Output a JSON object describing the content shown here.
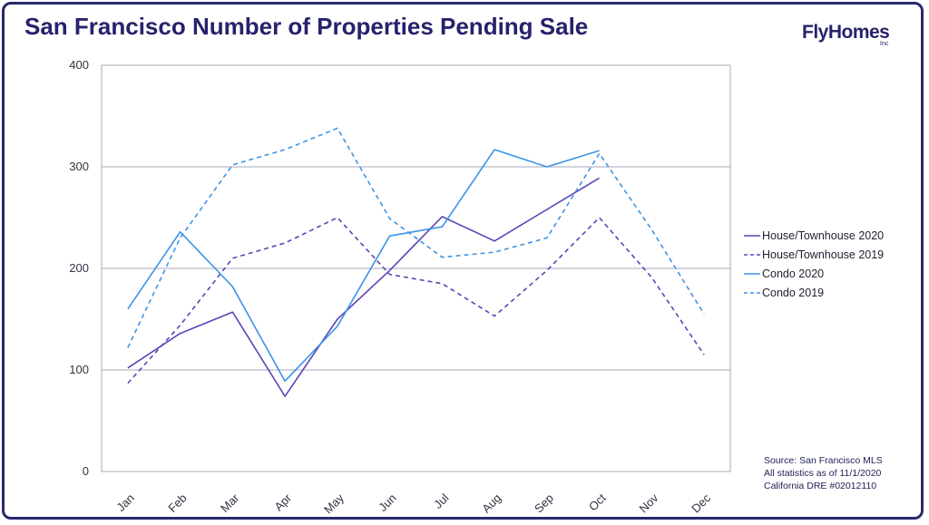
{
  "header": {
    "title": "San Francisco Number of Properties Pending Sale",
    "logo_text": "FlyHomes",
    "logo_subtext": "Inc"
  },
  "footer": {
    "source_lines": [
      "Source: San Francisco MLS",
      "All statistics as of 11/1/2020",
      "California DRE #02012110"
    ]
  },
  "colors": {
    "frame": "#2a2a6e",
    "title": "#26226b",
    "house": "#5b45b5",
    "condo": "#3c94e6",
    "grid": "#a9a9b8"
  },
  "chart_data": {
    "type": "line",
    "title": "San Francisco Number of Properties Pending Sale",
    "categories": [
      "Jan",
      "Feb",
      "Mar",
      "Apr",
      "May",
      "Jun",
      "Jul",
      "Aug",
      "Sep",
      "Oct",
      "Nov",
      "Dec"
    ],
    "ylim": [
      0,
      400
    ],
    "yticks": [
      "0",
      "100",
      "200",
      "300",
      "400"
    ],
    "grid": true,
    "legend_position": "right",
    "series": [
      {
        "name": "House/Townhouse 2020",
        "style": "solid",
        "color": "#5b45b5",
        "values": [
          102,
          136,
          157,
          74,
          150,
          198,
          251,
          227,
          258,
          289,
          null,
          null
        ]
      },
      {
        "name": "House/Townhouse 2019",
        "style": "dashed",
        "color": "#5b45b5",
        "values": [
          87,
          144,
          210,
          225,
          250,
          194,
          185,
          153,
          198,
          250,
          191,
          115
        ]
      },
      {
        "name": "Condo 2020",
        "style": "solid",
        "color": "#3c94e6",
        "values": [
          160,
          236,
          182,
          89,
          143,
          232,
          241,
          317,
          300,
          316,
          null,
          null
        ]
      },
      {
        "name": "Condo 2019",
        "style": "dashed",
        "color": "#3c94e6",
        "values": [
          122,
          230,
          302,
          317,
          338,
          249,
          211,
          216,
          230,
          313,
          238,
          155
        ]
      }
    ]
  }
}
